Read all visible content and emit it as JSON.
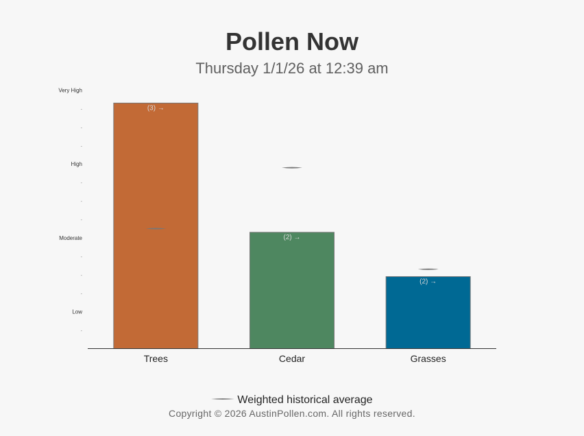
{
  "header": {
    "title": "Pollen Now",
    "subtitle": "Thursday 1/1/26 at 12:39 am"
  },
  "chart_data": {
    "type": "bar",
    "title": "Pollen Now",
    "subtitle": "Thursday 1/1/26 at 12:39 am",
    "xlabel": "",
    "ylabel": "",
    "ylim": [
      0,
      14
    ],
    "y_ticks": [
      {
        "value": 1,
        "label": "-"
      },
      {
        "value": 2,
        "label": "Low"
      },
      {
        "value": 3,
        "label": "-"
      },
      {
        "value": 4,
        "label": "-"
      },
      {
        "value": 5,
        "label": "-"
      },
      {
        "value": 6,
        "label": "Moderate"
      },
      {
        "value": 7,
        "label": "-"
      },
      {
        "value": 8,
        "label": "-"
      },
      {
        "value": 9,
        "label": "-"
      },
      {
        "value": 10,
        "label": "High"
      },
      {
        "value": 11,
        "label": "-"
      },
      {
        "value": 12,
        "label": "-"
      },
      {
        "value": 13,
        "label": "-"
      },
      {
        "value": 14,
        "label": "Very High"
      }
    ],
    "categories": [
      "Trees",
      "Cedar",
      "Grasses"
    ],
    "values": [
      13.3,
      6.3,
      3.9
    ],
    "bar_labels": [
      "(3) →",
      "(2) →",
      "(2) →"
    ],
    "historical_average": [
      6.5,
      9.8,
      4.3
    ],
    "colors": [
      "#c26a36",
      "#4e8760",
      "#006994"
    ],
    "average_marker_color": "#777777",
    "grid": false,
    "legend": {
      "position": "bottom",
      "label": "Weighted historical average"
    }
  },
  "footer": {
    "copyright": "Copyright © 2026 AustinPollen.com.  All rights reserved."
  }
}
